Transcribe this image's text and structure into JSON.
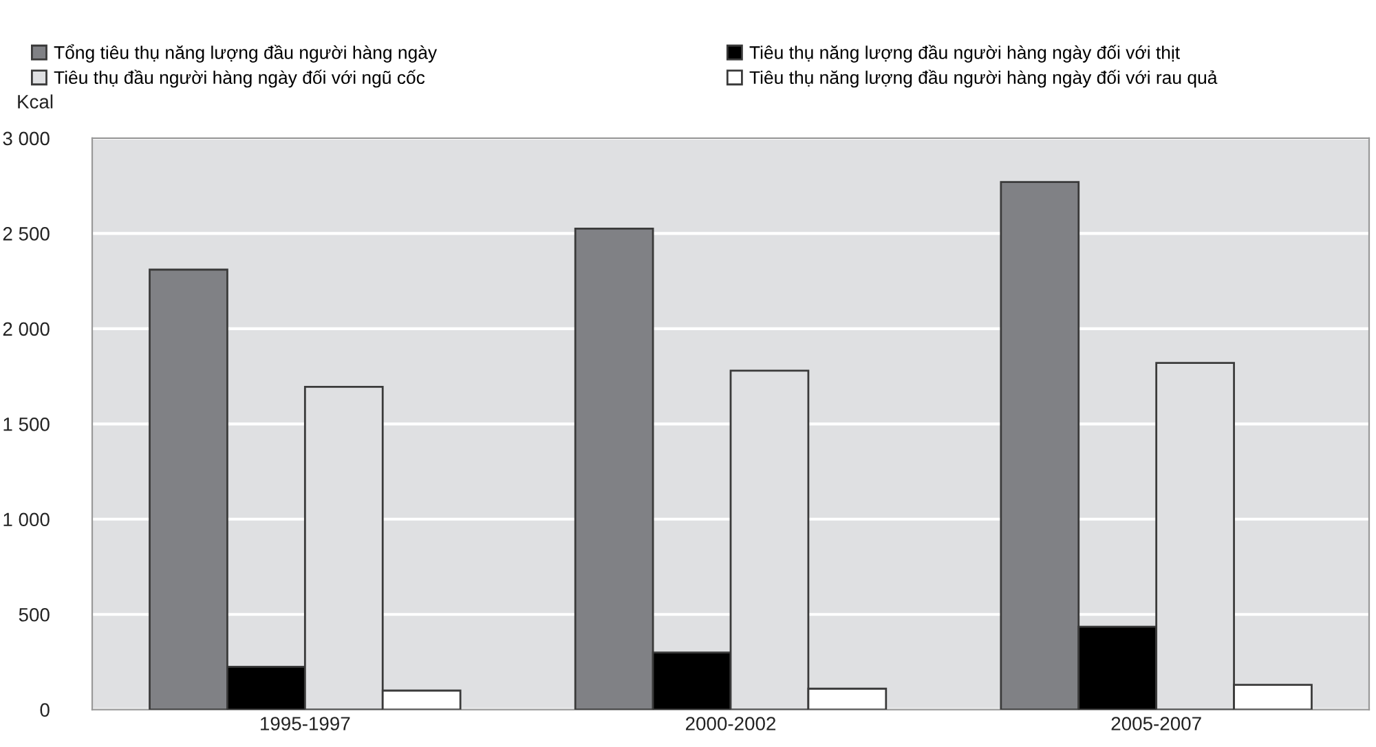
{
  "chart_data": {
    "type": "bar",
    "ylabel": "Kcal",
    "categories": [
      "1995-1997",
      "2000-2002",
      "2005-2007"
    ],
    "series": [
      {
        "name": "Tổng tiêu thụ năng lượng đầu người hàng ngày",
        "color": "#808185",
        "values": [
          2310,
          2525,
          2770
        ]
      },
      {
        "name": "Tiêu thụ năng lượng đầu người hàng ngày đối với thịt",
        "color": "#000000",
        "values": [
          225,
          300,
          435
        ]
      },
      {
        "name": "Tiêu thụ đầu người hàng ngày đối với ngũ cốc",
        "color": "#dfe0e2",
        "values": [
          1695,
          1780,
          1820
        ]
      },
      {
        "name": "Tiêu thụ năng lượng đầu người hàng ngày đối với rau quả",
        "color": "#ffffff",
        "values": [
          100,
          110,
          130
        ]
      }
    ],
    "ylim": [
      0,
      3000
    ],
    "yticks": [
      {
        "value": 0,
        "label": "0"
      },
      {
        "value": 500,
        "label": "500"
      },
      {
        "value": 1000,
        "label": "1 000"
      },
      {
        "value": 1500,
        "label": "1 500"
      },
      {
        "value": 2000,
        "label": "2 000"
      },
      {
        "value": 2500,
        "label": "2 500"
      },
      {
        "value": 3000,
        "label": "3 000"
      }
    ],
    "grid": "y",
    "legend": "top"
  }
}
